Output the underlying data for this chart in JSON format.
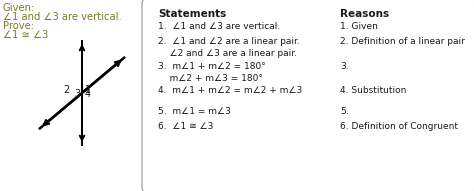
{
  "background_color": "#ffffff",
  "text_color_given": "#7a7a2a",
  "text_color_black": "#1a1a1a",
  "statements_header": "Statements",
  "reasons_header": "Reasons",
  "given_lines": [
    "Given:",
    "∠1 and ∠3 are vertical.",
    "Prove:",
    "∠1 ≅ ∠3"
  ],
  "stmt_texts": [
    "1.  ∠1 and ∠3 are vertical.",
    "2.  ∠1 and ∠2 are a linear pair.\n    ∠2 and ∠3 are a linear pair.",
    "3.  m∠1 + m∠2 = 180°\n    m∠2 + m∠3 = 180°",
    "4.  m∠1 + m∠2 = m∠2 + m∠3",
    "5.  m∠1 = m∠3",
    "6.  ∠1 ≅ ∠3"
  ],
  "reason_texts": [
    "1. Given",
    "2. Definition of a linear pair",
    "3.",
    "4. Substitution",
    "5.",
    "6. Definition of Congruent"
  ],
  "fig_width": 4.74,
  "fig_height": 1.91,
  "dpi": 100
}
